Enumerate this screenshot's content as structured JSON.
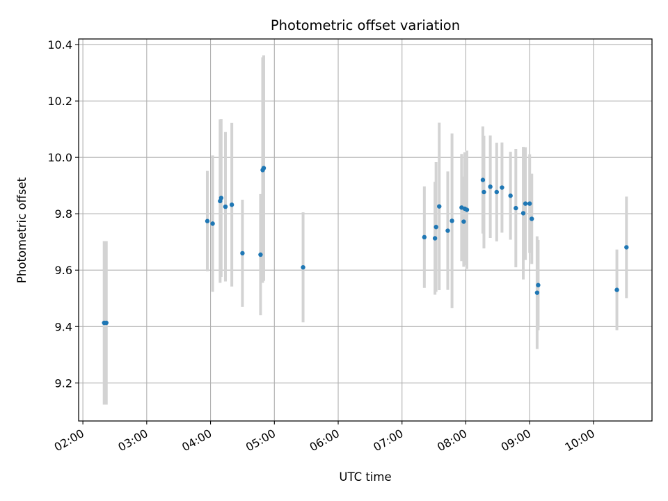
{
  "chart_data": {
    "type": "scatter",
    "title": "Photometric offset variation",
    "xlabel": "UTC time",
    "ylabel": "Photometric offset",
    "x_tick_labels": [
      "02:00",
      "03:00",
      "04:00",
      "05:00",
      "06:00",
      "07:00",
      "08:00",
      "09:00",
      "10:00"
    ],
    "y_tick_labels": [
      "9.2",
      "9.4",
      "9.6",
      "9.8",
      "10.0",
      "10.2",
      "10.4"
    ],
    "xlim": [
      "01:56",
      "10:55"
    ],
    "ylim": [
      9.065,
      10.42
    ],
    "grid": true,
    "colors": {
      "point": "#1f77b4",
      "errorbar": "#d3d3d3"
    },
    "series": [
      {
        "points": [
          {
            "x": "02:20",
            "y": 9.413,
            "err": 0.29
          },
          {
            "x": "02:22",
            "y": 9.413,
            "err": 0.29
          },
          {
            "x": "03:57",
            "y": 9.774,
            "err": 0.178
          },
          {
            "x": "04:02",
            "y": 9.765,
            "err": 0.242
          },
          {
            "x": "04:09",
            "y": 9.845,
            "err": 0.29
          },
          {
            "x": "04:10",
            "y": 9.856,
            "err": 0.28
          },
          {
            "x": "04:14",
            "y": 9.825,
            "err": 0.265
          },
          {
            "x": "04:20",
            "y": 9.832,
            "err": 0.29
          },
          {
            "x": "04:30",
            "y": 9.66,
            "err": 0.19
          },
          {
            "x": "04:47",
            "y": 9.655,
            "err": 0.215
          },
          {
            "x": "04:49",
            "y": 9.955,
            "err": 0.4
          },
          {
            "x": "04:50",
            "y": 9.962,
            "err": 0.4
          },
          {
            "x": "05:27",
            "y": 9.61,
            "err": 0.195
          },
          {
            "x": "07:21",
            "y": 9.717,
            "err": 0.18
          },
          {
            "x": "07:31",
            "y": 9.713,
            "err": 0.2
          },
          {
            "x": "07:32",
            "y": 9.753,
            "err": 0.23
          },
          {
            "x": "07:35",
            "y": 9.826,
            "err": 0.297
          },
          {
            "x": "07:43",
            "y": 9.74,
            "err": 0.21
          },
          {
            "x": "07:47",
            "y": 9.775,
            "err": 0.31
          },
          {
            "x": "07:56",
            "y": 9.822,
            "err": 0.19
          },
          {
            "x": "07:58",
            "y": 9.772,
            "err": 0.16
          },
          {
            "x": "07:59",
            "y": 9.818,
            "err": 0.2
          },
          {
            "x": "08:01",
            "y": 9.814,
            "err": 0.21
          },
          {
            "x": "08:16",
            "y": 9.92,
            "err": 0.19
          },
          {
            "x": "08:17",
            "y": 9.877,
            "err": 0.2
          },
          {
            "x": "08:23",
            "y": 9.896,
            "err": 0.182
          },
          {
            "x": "08:29",
            "y": 9.877,
            "err": 0.175
          },
          {
            "x": "08:34",
            "y": 9.893,
            "err": 0.16
          },
          {
            "x": "08:42",
            "y": 9.864,
            "err": 0.156
          },
          {
            "x": "08:47",
            "y": 9.82,
            "err": 0.21
          },
          {
            "x": "08:54",
            "y": 9.802,
            "err": 0.235
          },
          {
            "x": "08:56",
            "y": 9.836,
            "err": 0.2
          },
          {
            "x": "09:00",
            "y": 9.836,
            "err": 0.175
          },
          {
            "x": "09:02",
            "y": 9.782,
            "err": 0.16
          },
          {
            "x": "09:07",
            "y": 9.52,
            "err": 0.2
          },
          {
            "x": "09:08",
            "y": 9.547,
            "err": 0.16
          },
          {
            "x": "10:22",
            "y": 9.53,
            "err": 0.143
          },
          {
            "x": "10:31",
            "y": 9.681,
            "err": 0.18
          }
        ]
      }
    ]
  }
}
